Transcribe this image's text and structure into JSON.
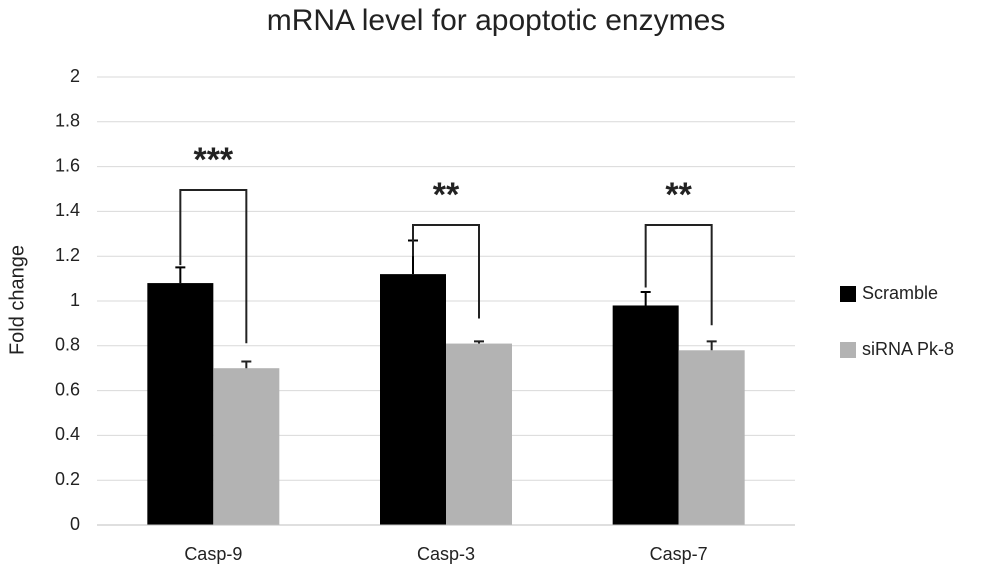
{
  "chart_data": {
    "type": "bar",
    "title": "mRNA level for apoptotic enzymes",
    "y_label": "Fold change",
    "categories": [
      "Casp-9",
      "Casp-3",
      "Casp-7"
    ],
    "series": [
      {
        "name": "Scramble",
        "color": "#000000",
        "values": [
          1.08,
          1.12,
          0.98
        ],
        "errors": [
          0.07,
          0.15,
          0.06
        ]
      },
      {
        "name": "siRNA Pk-8",
        "color": "#b3b3b3",
        "values": [
          0.7,
          0.81,
          0.78
        ],
        "errors": [
          0.03,
          0.01,
          0.04
        ]
      }
    ],
    "significance": [
      "***",
      "**",
      "**"
    ],
    "ylim": [
      0,
      2
    ],
    "yticks": [
      0,
      0.2,
      0.4,
      0.6,
      0.8,
      1,
      1.2,
      1.4,
      1.6,
      1.8,
      2
    ],
    "grid": true,
    "legend": "right"
  }
}
